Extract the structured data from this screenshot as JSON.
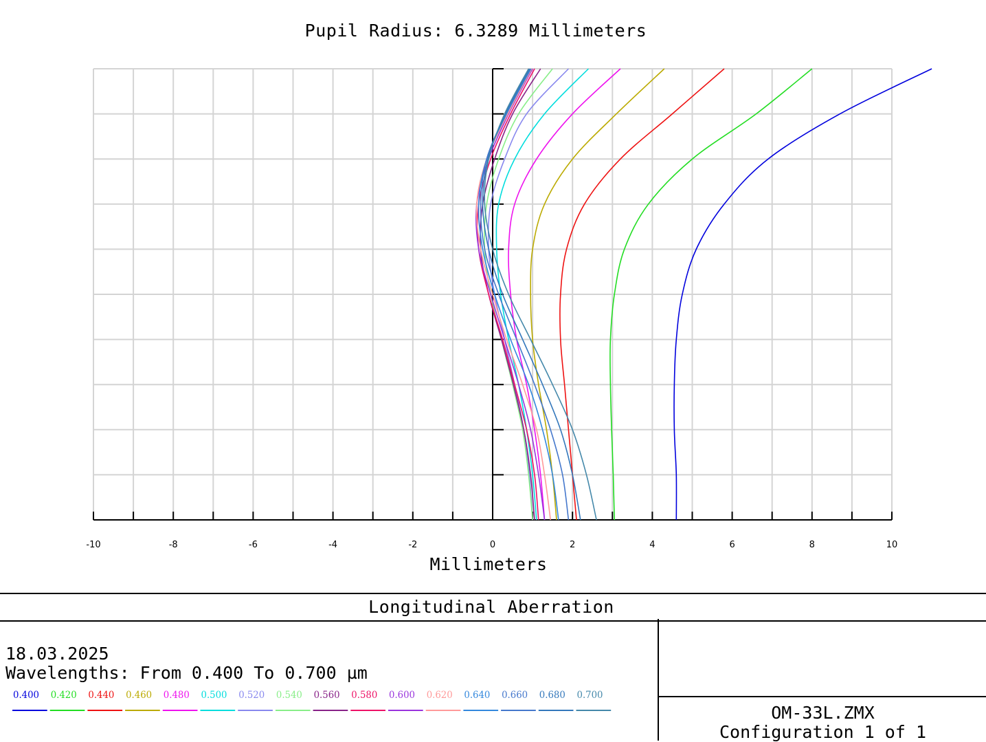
{
  "title": "Pupil Radius: 6.3289 Millimeters",
  "footer": {
    "panel_title": "Longitudinal Aberration",
    "date": "18.03.2025",
    "wavelength_range": "Wavelengths: From 0.400 To 0.700 µm",
    "file": "OM-33L.ZMX",
    "config": "Configuration 1 of 1"
  },
  "chart_data": {
    "type": "line",
    "title": "Pupil Radius: 6.3289 Millimeters",
    "xlabel": "Millimeters",
    "ylabel": "",
    "xlim": [
      -10,
      10
    ],
    "ylim": [
      0,
      1
    ],
    "x_ticks": [
      "-10",
      "-8",
      "-6",
      "-4",
      "-2",
      "0",
      "2",
      "4",
      "6",
      "8",
      "10"
    ],
    "grid": true,
    "legend_position": "bottom",
    "y_values": [
      0,
      0.1,
      0.2,
      0.3,
      0.4,
      0.5,
      0.6,
      0.7,
      0.8,
      0.9,
      1.0
    ],
    "series": [
      {
        "name": "0.400",
        "color": "#0000dd",
        "x": [
          4.6,
          4.6,
          4.55,
          4.55,
          4.6,
          4.75,
          5.1,
          5.8,
          6.9,
          8.7,
          11.0
        ]
      },
      {
        "name": "0.420",
        "color": "#22dd22",
        "x": [
          3.05,
          3.02,
          2.98,
          2.95,
          2.95,
          3.05,
          3.3,
          3.9,
          5.0,
          6.6,
          8.0
        ]
      },
      {
        "name": "0.440",
        "color": "#ee1111",
        "x": [
          2.1,
          2.0,
          1.9,
          1.8,
          1.7,
          1.7,
          1.85,
          2.3,
          3.2,
          4.5,
          5.8
        ]
      },
      {
        "name": "0.460",
        "color": "#bbaa00",
        "x": [
          1.6,
          1.5,
          1.35,
          1.15,
          1.0,
          0.95,
          1.0,
          1.3,
          2.0,
          3.1,
          4.3
        ]
      },
      {
        "name": "0.480",
        "color": "#ee11ee",
        "x": [
          1.3,
          1.2,
          1.05,
          0.85,
          0.6,
          0.45,
          0.4,
          0.55,
          1.1,
          2.0,
          3.2
        ]
      },
      {
        "name": "0.500",
        "color": "#00dddd",
        "x": [
          1.1,
          1.0,
          0.85,
          0.65,
          0.4,
          0.2,
          0.1,
          0.15,
          0.55,
          1.3,
          2.4
        ]
      },
      {
        "name": "0.520",
        "color": "#8888ee",
        "x": [
          1.0,
          0.92,
          0.78,
          0.55,
          0.3,
          0.05,
          -0.1,
          -0.05,
          0.3,
          0.85,
          1.9
        ]
      },
      {
        "name": "0.540",
        "color": "#88ee88",
        "x": [
          1.0,
          0.9,
          0.75,
          0.5,
          0.22,
          -0.05,
          -0.2,
          -0.15,
          0.15,
          0.65,
          1.5
        ]
      },
      {
        "name": "0.560",
        "color": "#882288",
        "x": [
          1.05,
          0.95,
          0.78,
          0.52,
          0.22,
          -0.1,
          -0.3,
          -0.25,
          0.05,
          0.5,
          1.2
        ]
      },
      {
        "name": "0.580",
        "color": "#ee1166",
        "x": [
          1.15,
          1.05,
          0.85,
          0.55,
          0.25,
          -0.1,
          -0.35,
          -0.35,
          -0.05,
          0.45,
          1.05
        ]
      },
      {
        "name": "0.600",
        "color": "#9933dd",
        "x": [
          1.3,
          1.15,
          0.95,
          0.65,
          0.3,
          -0.05,
          -0.35,
          -0.4,
          -0.1,
          0.4,
          1.0
        ]
      },
      {
        "name": "0.620",
        "color": "#ff9999",
        "x": [
          1.45,
          1.3,
          1.1,
          0.75,
          0.35,
          0.0,
          -0.3,
          -0.4,
          -0.15,
          0.38,
          0.98
        ]
      },
      {
        "name": "0.640",
        "color": "#3388dd",
        "x": [
          1.65,
          1.5,
          1.25,
          0.9,
          0.45,
          0.05,
          -0.25,
          -0.35,
          -0.15,
          0.35,
          0.96
        ]
      },
      {
        "name": "0.660",
        "color": "#4477cc",
        "x": [
          1.9,
          1.75,
          1.45,
          1.05,
          0.6,
          0.15,
          -0.2,
          -0.3,
          -0.15,
          0.33,
          0.94
        ]
      },
      {
        "name": "0.680",
        "color": "#3377bb",
        "x": [
          2.2,
          2.0,
          1.7,
          1.25,
          0.75,
          0.25,
          -0.1,
          -0.25,
          -0.12,
          0.32,
          0.92
        ]
      },
      {
        "name": "0.700",
        "color": "#4488aa",
        "x": [
          2.6,
          2.35,
          2.0,
          1.5,
          0.95,
          0.4,
          0.0,
          -0.2,
          -0.1,
          0.3,
          0.9
        ]
      }
    ]
  }
}
